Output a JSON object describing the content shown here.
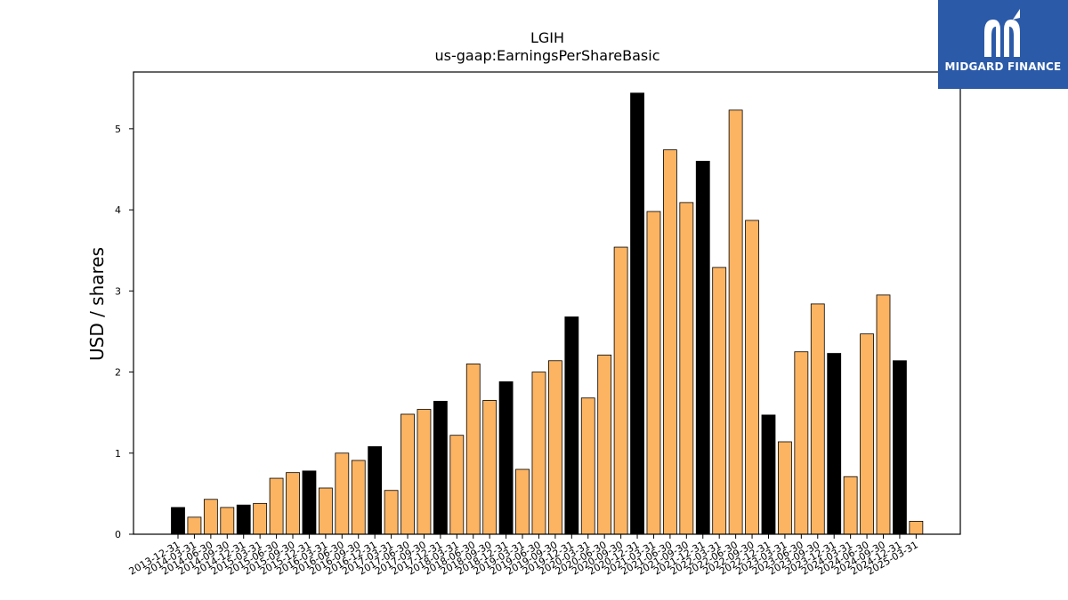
{
  "chart_data": {
    "type": "bar",
    "title": "LGIH",
    "subtitle": "us-gaap:EarningsPerShareBasic",
    "xlabel": "",
    "ylabel": "USD / shares",
    "ylim": [
      0,
      5.7
    ],
    "yticks": [
      0,
      1,
      2,
      3,
      4,
      5
    ],
    "grid": false,
    "colors": {
      "annual": "#000000",
      "quarterly": "#fdb462",
      "edge": "#000000"
    },
    "categories": [
      "2013-12-31",
      "2014-03-31",
      "2014-06-30",
      "2014-09-30",
      "2014-12-31",
      "2015-03-31",
      "2015-06-30",
      "2015-09-30",
      "2015-12-31",
      "2016-03-31",
      "2016-06-30",
      "2016-09-30",
      "2016-12-31",
      "2017-03-31",
      "2017-06-30",
      "2017-09-30",
      "2017-12-31",
      "2018-03-31",
      "2018-06-30",
      "2018-09-30",
      "2018-12-31",
      "2019-03-31",
      "2019-06-30",
      "2019-09-30",
      "2019-12-31",
      "2020-03-31",
      "2020-06-30",
      "2020-09-30",
      "2020-12-31",
      "2021-03-31",
      "2021-06-30",
      "2021-09-30",
      "2021-12-31",
      "2022-03-31",
      "2022-06-30",
      "2022-09-30",
      "2022-12-31",
      "2023-03-31",
      "2023-06-30",
      "2023-09-30",
      "2023-12-31",
      "2024-03-31",
      "2024-06-30",
      "2024-09-30",
      "2024-12-31",
      "2025-03-31"
    ],
    "values": [
      0.33,
      0.21,
      0.43,
      0.33,
      0.36,
      0.38,
      0.69,
      0.76,
      0.78,
      0.57,
      1.0,
      0.91,
      1.08,
      0.54,
      1.48,
      1.54,
      1.64,
      1.22,
      2.1,
      1.65,
      1.88,
      0.8,
      2.0,
      2.14,
      2.68,
      1.68,
      2.21,
      3.54,
      5.44,
      3.98,
      4.74,
      4.09,
      4.6,
      3.29,
      5.23,
      3.87,
      1.47,
      1.14,
      2.25,
      2.84,
      2.23,
      0.71,
      2.47,
      2.95,
      2.14,
      0.16
    ],
    "annual_flags": [
      1,
      0,
      0,
      0,
      1,
      0,
      0,
      0,
      1,
      0,
      0,
      0,
      1,
      0,
      0,
      0,
      1,
      0,
      0,
      0,
      1,
      0,
      0,
      0,
      1,
      0,
      0,
      0,
      1,
      0,
      0,
      0,
      1,
      0,
      0,
      0,
      1,
      0,
      0,
      0,
      1,
      0,
      0,
      0,
      1,
      0
    ]
  },
  "logo": {
    "text": "MIDGARD FINANCE",
    "color": "#2b5aa8"
  }
}
